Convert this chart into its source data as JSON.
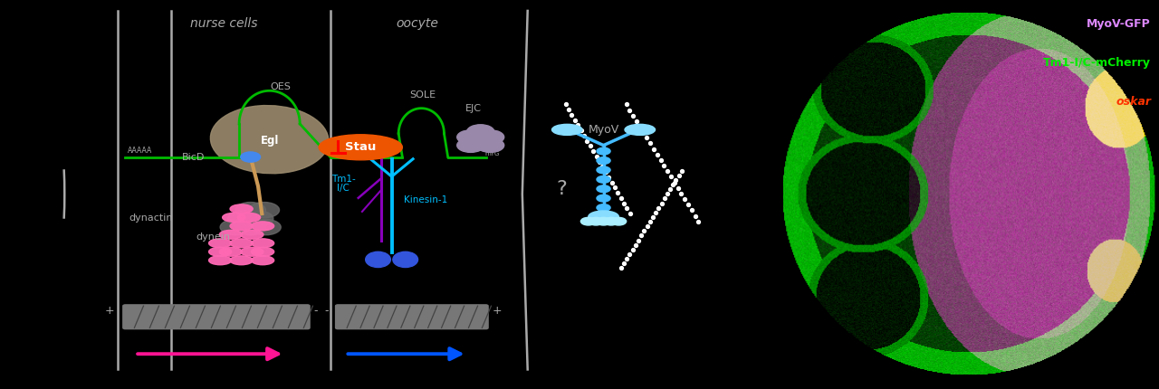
{
  "bg_color": "#000000",
  "colors": {
    "mRNA_line": "#00bb00",
    "dynein_pink": "#ff69b4",
    "microtubule_gray": "#888888",
    "arrow_pink": "#ff1493",
    "arrow_blue": "#0055ff",
    "stau_orange": "#ee5500",
    "kinesin_cyan": "#00bfff",
    "tm1_purple": "#8800bb",
    "bicd_tan": "#cc9955",
    "egl_brown": "#9b8b6e",
    "myov_cyan": "#44bbff",
    "ejc_mauve": "#9988aa",
    "cell_border": "#aaaaaa",
    "text_gray": "#aaaaaa",
    "text_white": "#ffffff",
    "text_cyan": "#00bfff",
    "label_color": "#aaaaaa"
  },
  "legend_myov": "MyoV-GFP",
  "legend_tm1": "Tm1-I/C-mCherry",
  "legend_oskar": "oskar"
}
